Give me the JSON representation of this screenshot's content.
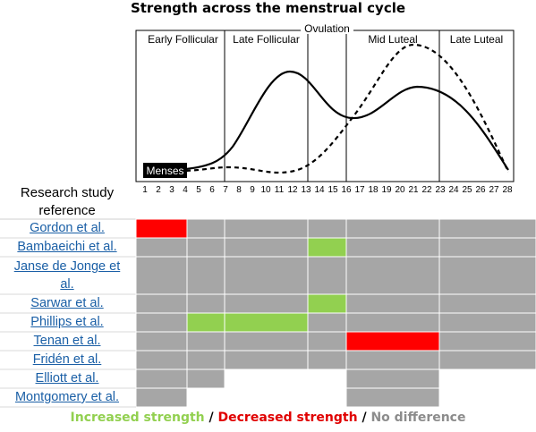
{
  "title": "Strength across the menstrual cycle",
  "chart": {
    "phases": [
      "Early Follicular",
      "Late Follicular",
      "Mid Luteal",
      "Late Luteal"
    ],
    "ovulation_label": "Ovulation",
    "menses_label": "Menses",
    "day_ticks": [
      "1",
      "2",
      "3",
      "4",
      "5",
      "6",
      "7",
      "8",
      "9",
      "10",
      "11",
      "12",
      "13",
      "14",
      "15",
      "16",
      "17",
      "18",
      "19",
      "20",
      "21",
      "22",
      "23",
      "24",
      "25",
      "26",
      "27",
      "28"
    ]
  },
  "table": {
    "header": "Research study reference",
    "studies": [
      {
        "name": "Gordon et al.",
        "cells": [
          "red",
          "gray",
          "gray",
          "gray",
          "gray",
          "gray"
        ]
      },
      {
        "name": "Bambaeichi et al.",
        "cells": [
          "gray",
          "gray",
          "gray",
          "green",
          "gray",
          "gray"
        ]
      },
      {
        "name": "Janse de Jonge et al.",
        "cells": [
          "gray",
          "gray",
          "gray",
          "gray",
          "gray",
          "gray"
        ]
      },
      {
        "name": "Sarwar et al.",
        "cells": [
          "gray",
          "gray",
          "gray",
          "green",
          "gray",
          "gray"
        ]
      },
      {
        "name": "Phillips et al.",
        "cells": [
          "gray",
          "green",
          "green",
          "gray",
          "gray",
          "gray"
        ]
      },
      {
        "name": "Tenan et al.",
        "cells": [
          "gray",
          "gray",
          "gray",
          "gray",
          "red",
          "gray"
        ]
      },
      {
        "name": "Fridén et al.",
        "cells": [
          "gray",
          "gray",
          "gray",
          "gray",
          "gray",
          "gray"
        ]
      },
      {
        "name": "Elliott  et al.",
        "cells": [
          "gray",
          "gray",
          "white",
          "white",
          "gray",
          "white"
        ]
      },
      {
        "name": "Montgomery et al.",
        "cells": [
          "gray",
          "white",
          "white",
          "white",
          "gray",
          "white"
        ]
      }
    ]
  },
  "legend": {
    "increased": "Increased strength",
    "sep1": " / ",
    "decreased": "Decreased strength",
    "sep2": " / ",
    "nodiff": "No difference"
  },
  "colors": {
    "red": "#ff0000",
    "green": "#92d050",
    "gray": "#a6a6a6",
    "white": "#ffffff",
    "link": "#1a5fa6",
    "legend_increased": "#92d050",
    "legend_decreased": "#e00000",
    "legend_nodiff": "#8c8c8c"
  }
}
